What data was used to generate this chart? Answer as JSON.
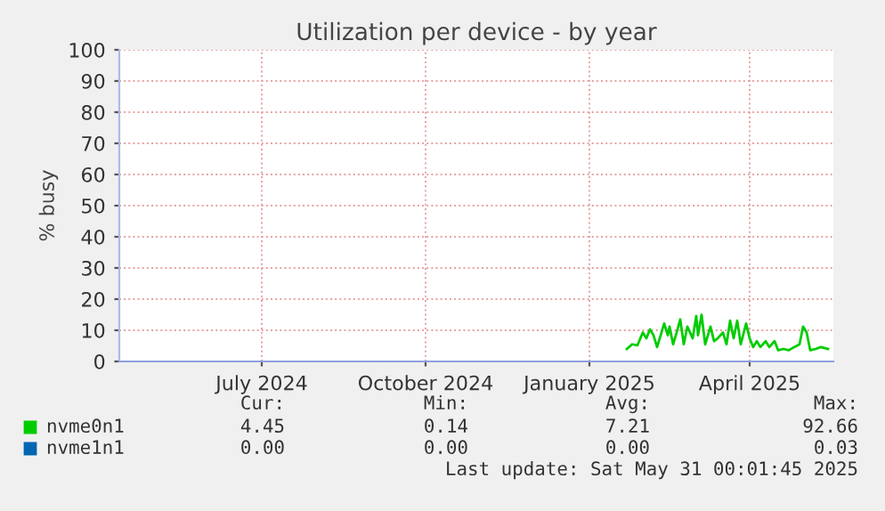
{
  "chart_data": {
    "type": "line",
    "title": "Utilization per device - by year",
    "ylabel": "% busy",
    "xlim": [
      "2024-04-12",
      "2025-05-18"
    ],
    "xticks": [
      {
        "value": "2024-07-01",
        "label": "July 2024"
      },
      {
        "value": "2024-10-01",
        "label": "October 2024"
      },
      {
        "value": "2025-01-01",
        "label": "January 2025"
      },
      {
        "value": "2025-04-01",
        "label": "April 2025"
      }
    ],
    "ylim": [
      0,
      100
    ],
    "yticks": [
      0,
      10,
      20,
      30,
      40,
      50,
      60,
      70,
      80,
      90,
      100
    ],
    "grid": true,
    "legend": "bottom left",
    "series": [
      {
        "name": "nvme0n1",
        "color": "#00cc00",
        "x": [
          "2025-01-22",
          "2025-01-25",
          "2025-01-28",
          "2025-01-31",
          "2025-02-02",
          "2025-02-04",
          "2025-02-06",
          "2025-02-08",
          "2025-02-10",
          "2025-02-12",
          "2025-02-14",
          "2025-02-15",
          "2025-02-17",
          "2025-02-19",
          "2025-02-21",
          "2025-02-23",
          "2025-02-25",
          "2025-02-28",
          "2025-03-02",
          "2025-03-03",
          "2025-03-05",
          "2025-03-07",
          "2025-03-10",
          "2025-03-12",
          "2025-03-14",
          "2025-03-17",
          "2025-03-19",
          "2025-03-21",
          "2025-03-23",
          "2025-03-25",
          "2025-03-27",
          "2025-03-30",
          "2025-04-01",
          "2025-04-03",
          "2025-04-05",
          "2025-04-07",
          "2025-04-10",
          "2025-04-12",
          "2025-04-15",
          "2025-04-17",
          "2025-04-20",
          "2025-04-23",
          "2025-04-26",
          "2025-04-29",
          "2025-05-01",
          "2025-05-03",
          "2025-05-05",
          "2025-05-08",
          "2025-05-11",
          "2025-05-15"
        ],
        "values": [
          4,
          5.5,
          5.2,
          9.3,
          7.4,
          10.3,
          8.4,
          4.6,
          8.4,
          12.2,
          8.4,
          11.2,
          5.5,
          9.3,
          13.5,
          5.5,
          11.2,
          7.4,
          14.6,
          8.4,
          15,
          5.5,
          11.2,
          6.5,
          7.4,
          9.3,
          5.5,
          13.1,
          7.4,
          13.1,
          5.5,
          12.2,
          7.4,
          4.6,
          6.5,
          4.6,
          6.5,
          4.6,
          6.5,
          3.6,
          4,
          3.6,
          4.6,
          5.5,
          11.2,
          9.3,
          3.6,
          4,
          4.6,
          4
        ]
      },
      {
        "name": "nvme1n1",
        "color": "#0066b3"
      }
    ],
    "annotations": [
      "Cur:",
      "Min:",
      "Avg:",
      "Max:",
      "4.45",
      "0.14",
      "7.21",
      "92.66",
      "0.00",
      "0.00",
      "0.00",
      "0.03",
      "Last update: Sat May 31 00:01:45 2025"
    ]
  }
}
